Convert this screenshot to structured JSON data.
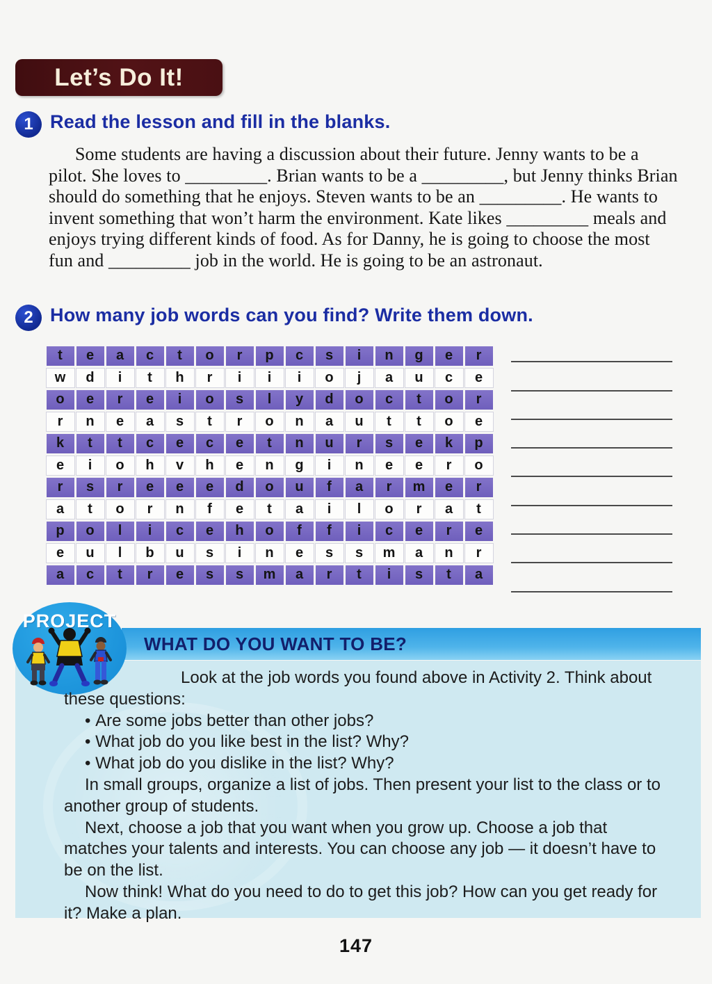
{
  "page": {
    "number": "147"
  },
  "banner": {
    "label": "Let’s Do It!",
    "bg_color": "#4a1013",
    "text_color": "#f6eedb"
  },
  "activity1": {
    "number": "1",
    "title": "Read the lesson and fill in the blanks.",
    "paragraph": "Some students are having a discussion about their future. Jenny wants to be a pilot. She loves to _________. Brian wants to be a _________, but Jenny thinks Brian should do something that he enjoys. Steven wants to be an _________. He wants to invent something that won’t harm the environment. Kate likes _________ meals and enjoys trying different kinds of food. As for Danny, he is going to choose the most fun and _________ job in the world. He is going to be an astronaut."
  },
  "activity2": {
    "number": "2",
    "title": "How many job words can you find? Write them down.",
    "wordsearch": {
      "columns": 15,
      "rows": [
        "teactorpcsinger",
        "wdithriiiojauce",
        "oereioslydoctor",
        "rneastronauttoe",
        "kttcecetnursekp",
        "eiohvhengineero",
        "rsreeedoufarmer",
        "atornfetailorat",
        "policehofficere",
        "eulbusinessmanr",
        "actressmartista"
      ],
      "highlight_row_color": "#7968c3",
      "answer_line_count": 9
    }
  },
  "project": {
    "badge_label": "PROJECT",
    "badge_color": "#1f9ce0",
    "title": "WHAT DO YOU WANT TO BE?",
    "band_color": "#4fb4ea",
    "panel_color": "#cfe9f1",
    "paragraphs": [
      {
        "type": "first",
        "text": "Look at the job words you found above in Activity 2. Think about these questions:"
      },
      {
        "type": "bullet",
        "text": "Are some jobs better than other jobs?"
      },
      {
        "type": "bullet",
        "text": "What job do you like best in the list? Why?"
      },
      {
        "type": "bullet",
        "text": "What job do you dislike in the list? Why?"
      },
      {
        "type": "indent",
        "text": "In small groups, organize a list of jobs. Then present your list to the class or to another group of students."
      },
      {
        "type": "indent",
        "text": "Next, choose a job that you want when you grow up. Choose a job that matches your talents and interests. You can choose any job — it doesn’t have to be on the list."
      },
      {
        "type": "indent",
        "text": "Now think! What do you need to do to get this job? How can you get ready for it? Make a plan."
      }
    ]
  }
}
